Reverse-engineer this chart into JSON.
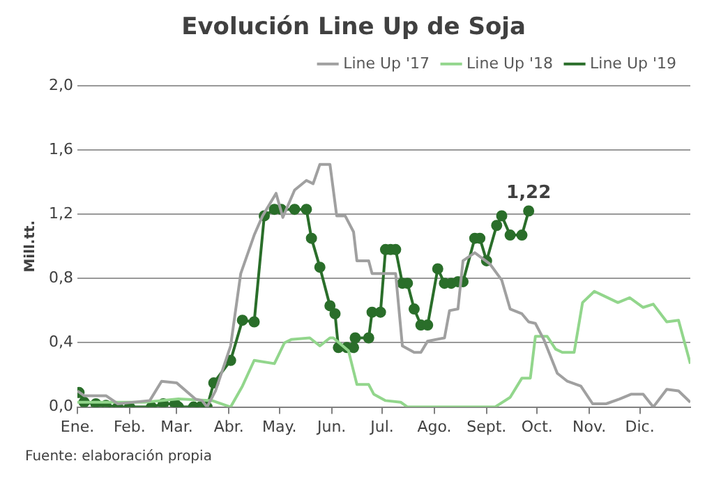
{
  "chart_data": {
    "type": "line",
    "title": "Evolución Line Up de Soja",
    "ylabel": "Mill.tt.",
    "xlim": [
      "--01-01",
      "--12-31"
    ],
    "xticks": [
      {
        "value": "--01-01",
        "label": "Ene."
      },
      {
        "value": "--02-01",
        "label": "Feb."
      },
      {
        "value": "--03-01",
        "label": "Mar."
      },
      {
        "value": "--04-01",
        "label": "Abr."
      },
      {
        "value": "--05-01",
        "label": "May."
      },
      {
        "value": "--06-01",
        "label": "Jun."
      },
      {
        "value": "--07-01",
        "label": "Jul."
      },
      {
        "value": "--08-01",
        "label": "Ago."
      },
      {
        "value": "--09-01",
        "label": "Sept."
      },
      {
        "value": "--10-01",
        "label": "Oct."
      },
      {
        "value": "--11-01",
        "label": "Nov."
      },
      {
        "value": "--12-01",
        "label": "Dic."
      }
    ],
    "ylim": [
      0,
      2
    ],
    "yticks": [
      {
        "value": 0,
        "label": "0,0"
      },
      {
        "value": 0.4,
        "label": "0,4"
      },
      {
        "value": 0.8,
        "label": "0,8"
      },
      {
        "value": 1.2,
        "label": "1,2"
      },
      {
        "value": 1.6,
        "label": "1,6"
      },
      {
        "value": 2,
        "label": "2,0"
      }
    ],
    "grid": "y",
    "legend": "top",
    "line_style": "solid",
    "series": [
      {
        "name": "Line Up '17",
        "color": "#a0a0a0",
        "marker": "none",
        "x": [
          "--01-01",
          "--01-05",
          "--01-18",
          "--01-25",
          "--02-13",
          "--02-20",
          "--03-01",
          "--03-12",
          "--03-16",
          "--03-19",
          "--03-24",
          "--04-02",
          "--04-08",
          "--04-16",
          "--04-21",
          "--04-29",
          "--05-03",
          "--05-10",
          "--05-17",
          "--05-21",
          "--05-25",
          "--05-31",
          "--06-04",
          "--06-09",
          "--06-14",
          "--06-16",
          "--06-23",
          "--06-25",
          "--07-09",
          "--07-13",
          "--07-20",
          "--07-24",
          "--07-28",
          "--08-07",
          "--08-10",
          "--08-15",
          "--08-18",
          "--08-25",
          "--09-03",
          "--09-10",
          "--09-15",
          "--09-22",
          "--09-26",
          "--09-30",
          "--10-05",
          "--10-13",
          "--10-19",
          "--10-27",
          "--11-03",
          "--11-11",
          "--11-19",
          "--11-26",
          "--12-03",
          "--12-09",
          "--12-17",
          "--12-24",
          "--12-31"
        ],
        "values": [
          0.1,
          0.07,
          0.07,
          0.02,
          0.04,
          0.16,
          0.15,
          0.05,
          0.04,
          0,
          0.1,
          0.38,
          0.83,
          1.07,
          1.19,
          1.33,
          1.18,
          1.35,
          1.41,
          1.39,
          1.51,
          1.51,
          1.19,
          1.19,
          1.09,
          0.91,
          0.91,
          0.83,
          0.83,
          0.38,
          0.34,
          0.34,
          0.41,
          0.43,
          0.6,
          0.61,
          0.91,
          0.96,
          0.89,
          0.79,
          0.61,
          0.58,
          0.53,
          0.52,
          0.42,
          0.21,
          0.16,
          0.13,
          0.02,
          0.02,
          0.05,
          0.08,
          0.08,
          0,
          0.11,
          0.1,
          0.03
        ]
      },
      {
        "name": "Line Up '18",
        "color": "#92d68c",
        "marker": "none",
        "x": [
          "--01-01",
          "--02-10",
          "--03-02",
          "--03-22",
          "--04-02",
          "--04-09",
          "--04-16",
          "--04-28",
          "--05-04",
          "--05-08",
          "--05-19",
          "--05-25",
          "--05-31",
          "--06-02",
          "--06-11",
          "--06-16",
          "--06-23",
          "--06-26",
          "--07-03",
          "--07-12",
          "--07-16",
          "--09-06",
          "--09-15",
          "--09-22",
          "--09-27",
          "--09-30",
          "--10-07",
          "--10-12",
          "--10-16",
          "--10-23",
          "--10-28",
          "--11-04",
          "--11-10",
          "--11-18",
          "--11-25",
          "--12-03",
          "--12-09",
          "--12-17",
          "--12-24",
          "--12-31"
        ],
        "values": [
          0.03,
          0.03,
          0.05,
          0.04,
          0,
          0.13,
          0.29,
          0.27,
          0.4,
          0.42,
          0.43,
          0.38,
          0.43,
          0.43,
          0.35,
          0.14,
          0.14,
          0.08,
          0.04,
          0.03,
          0,
          0,
          0.06,
          0.18,
          0.18,
          0.44,
          0.44,
          0.36,
          0.34,
          0.34,
          0.65,
          0.72,
          0.69,
          0.65,
          0.68,
          0.62,
          0.64,
          0.53,
          0.54,
          0.27
        ]
      },
      {
        "name": "Line Up '19",
        "color": "#2a6e2a",
        "marker": "circle",
        "x": [
          "--01-02",
          "--01-05",
          "--01-12",
          "--01-18",
          "--01-25",
          "--02-01",
          "--02-14",
          "--02-21",
          "--02-28",
          "--03-02",
          "--03-11",
          "--03-15",
          "--03-19",
          "--03-23",
          "--04-02",
          "--04-09",
          "--04-16",
          "--04-22",
          "--04-28",
          "--05-02",
          "--05-10",
          "--05-17",
          "--05-20",
          "--05-25",
          "--05-31",
          "--06-03",
          "--06-05",
          "--06-10",
          "--06-14",
          "--06-15",
          "--06-23",
          "--06-25",
          "--06-30",
          "--07-03",
          "--07-06",
          "--07-09",
          "--07-13",
          "--07-16",
          "--07-20",
          "--07-24",
          "--07-28",
          "--08-03",
          "--08-07",
          "--08-11",
          "--08-15",
          "--08-18",
          "--08-25",
          "--08-28",
          "--09-01",
          "--09-07",
          "--09-10",
          "--09-15",
          "--09-22",
          "--09-26"
        ],
        "values": [
          0.09,
          0.03,
          0.02,
          0.01,
          0,
          0,
          0,
          0.02,
          0.02,
          0,
          0,
          0,
          0,
          0.15,
          0.29,
          0.54,
          0.53,
          1.19,
          1.23,
          1.23,
          1.23,
          1.23,
          1.05,
          0.87,
          0.63,
          0.58,
          0.37,
          0.37,
          0.37,
          0.43,
          0.43,
          0.59,
          0.59,
          0.98,
          0.98,
          0.98,
          0.77,
          0.77,
          0.61,
          0.51,
          0.51,
          0.86,
          0.77,
          0.77,
          0.78,
          0.78,
          1.05,
          1.05,
          0.91,
          1.13,
          1.19,
          1.07,
          1.07,
          1.22
        ]
      }
    ],
    "annotations": [
      {
        "text": "1,22",
        "x": "--09-26",
        "y": 1.22
      },
      "Fuente: elaboración propia"
    ]
  }
}
